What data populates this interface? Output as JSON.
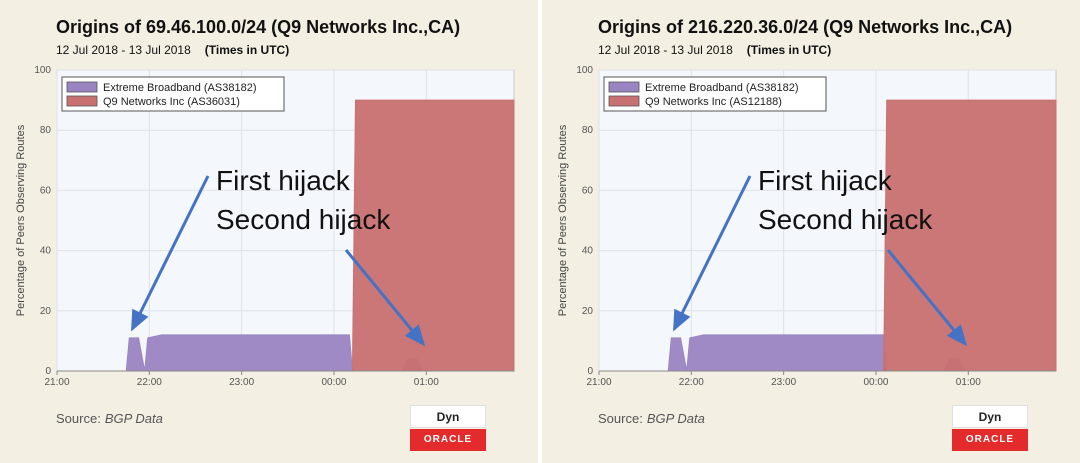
{
  "chart_data": [
    {
      "type": "area",
      "title": "Origins of 69.46.100.0/24 (Q9 Networks Inc.,CA)",
      "subtitle": "12 Jul 2018 - 13 Jul 2018",
      "timezone_note": "(Times in UTC)",
      "xlabel": "",
      "ylabel": "Percentage of Peers Observing Routes",
      "ylim": [
        0,
        100
      ],
      "xlim": [
        "21:00",
        "01:57"
      ],
      "x_ticks": [
        "21:00",
        "22:00",
        "23:00",
        "00:00",
        "01:00"
      ],
      "y_ticks": [
        0,
        20,
        40,
        60,
        80,
        100
      ],
      "grid": true,
      "legend_position": "top-left",
      "series": [
        {
          "name": "Extreme Broadband (AS38182)",
          "color": "#9b84c2",
          "points": [
            [
              "21:45",
              0
            ],
            [
              "21:47",
              11
            ],
            [
              "21:53",
              11
            ],
            [
              "21:57",
              0
            ],
            [
              "21:59",
              11
            ],
            [
              "22:08",
              12
            ],
            [
              "00:10",
              12
            ],
            [
              "00:12",
              0
            ],
            [
              "00:44",
              0
            ],
            [
              "00:48",
              4
            ],
            [
              "00:54",
              4
            ],
            [
              "00:58",
              0
            ]
          ]
        },
        {
          "name": "Q9 Networks Inc (AS36031)",
          "color": "#c97070",
          "points": [
            [
              "00:12",
              0
            ],
            [
              "00:14",
              90
            ],
            [
              "01:57",
              90
            ]
          ]
        }
      ],
      "annotations": [
        {
          "text": "First hijack",
          "target": [
            "21:49",
            14
          ]
        },
        {
          "text": "Second hijack",
          "target": [
            "00:58",
            9
          ]
        }
      ],
      "source_label": "Source:",
      "source_name": "BGP Data",
      "logo_top": "Dyn",
      "logo_bottom": "ORACLE"
    },
    {
      "type": "area",
      "title": "Origins of 216.220.36.0/24 (Q9 Networks Inc.,CA)",
      "subtitle": "12 Jul 2018 - 13 Jul 2018",
      "timezone_note": "(Times in UTC)",
      "xlabel": "",
      "ylabel": "Percentage of Peers Observing Routes",
      "ylim": [
        0,
        100
      ],
      "xlim": [
        "21:00",
        "01:57"
      ],
      "x_ticks": [
        "21:00",
        "22:00",
        "23:00",
        "00:00",
        "01:00"
      ],
      "y_ticks": [
        0,
        20,
        40,
        60,
        80,
        100
      ],
      "grid": true,
      "legend_position": "top-left",
      "series": [
        {
          "name": "Extreme Broadband (AS38182)",
          "color": "#9b84c2",
          "points": [
            [
              "21:45",
              0
            ],
            [
              "21:47",
              11
            ],
            [
              "21:53",
              11
            ],
            [
              "21:57",
              0
            ],
            [
              "21:59",
              11
            ],
            [
              "22:08",
              12
            ],
            [
              "00:05",
              12
            ],
            [
              "00:07",
              0
            ],
            [
              "00:44",
              0
            ],
            [
              "00:48",
              4
            ],
            [
              "00:54",
              4
            ],
            [
              "00:58",
              0
            ]
          ]
        },
        {
          "name": "Q9 Networks Inc (AS12188)",
          "color": "#c97070",
          "points": [
            [
              "00:05",
              0
            ],
            [
              "00:07",
              90
            ],
            [
              "01:57",
              90
            ]
          ]
        }
      ],
      "annotations": [
        {
          "text": "First hijack",
          "target": [
            "21:49",
            14
          ]
        },
        {
          "text": "Second hijack",
          "target": [
            "00:58",
            9
          ]
        }
      ],
      "source_label": "Source:",
      "source_name": "BGP Data",
      "logo_top": "Dyn",
      "logo_bottom": "ORACLE"
    }
  ]
}
